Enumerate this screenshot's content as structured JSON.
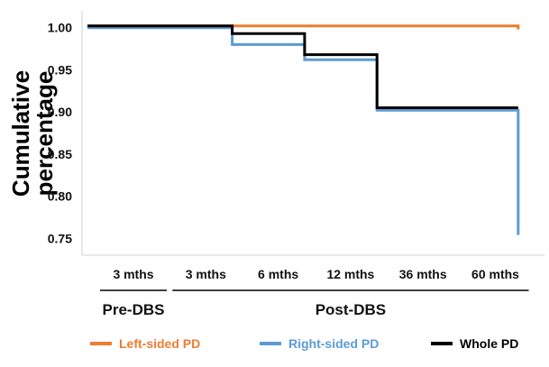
{
  "chart_data": {
    "type": "line",
    "step": true,
    "ylabel_lines": [
      "Cumulative",
      "percentage"
    ],
    "categories": [
      "3 mths",
      "3 mths",
      "6 mths",
      "12 mths",
      "36 mths",
      "60 mths"
    ],
    "groups": [
      {
        "label": "Pre-DBS",
        "categories": [
          "3 mths"
        ]
      },
      {
        "label": "Post-DBS",
        "categories": [
          "3 mths",
          "6 mths",
          "12 mths",
          "36 mths",
          "60 mths"
        ]
      }
    ],
    "ylim": [
      0.73,
      1.02
    ],
    "yticks": [
      "1.00",
      "0.95",
      "0.90",
      "0.85",
      "0.80",
      "0.75"
    ],
    "ytick_values": [
      1.0,
      0.95,
      0.9,
      0.85,
      0.8,
      0.75
    ],
    "series": [
      {
        "name": "Left-sided PD",
        "color": "#ED7D31",
        "points": [
          [
            0,
            1.002
          ],
          [
            5.95,
            1.002
          ],
          [
            5.95,
            0.998
          ]
        ]
      },
      {
        "name": "Right-sided PD",
        "color": "#5B9BD5",
        "points": [
          [
            0,
            1.0
          ],
          [
            2.0,
            1.0
          ],
          [
            2.0,
            0.98
          ],
          [
            3.0,
            0.98
          ],
          [
            3.0,
            0.962
          ],
          [
            4.0,
            0.962
          ],
          [
            4.0,
            0.902
          ],
          [
            5.95,
            0.902
          ],
          [
            5.95,
            0.754
          ]
        ]
      },
      {
        "name": "Whole PD",
        "color": "#000000",
        "points": [
          [
            0,
            1.002
          ],
          [
            2.0,
            1.002
          ],
          [
            2.0,
            0.993
          ],
          [
            3.0,
            0.993
          ],
          [
            3.0,
            0.968
          ],
          [
            4.0,
            0.968
          ],
          [
            4.0,
            0.905
          ],
          [
            5.95,
            0.905
          ]
        ]
      }
    ]
  }
}
